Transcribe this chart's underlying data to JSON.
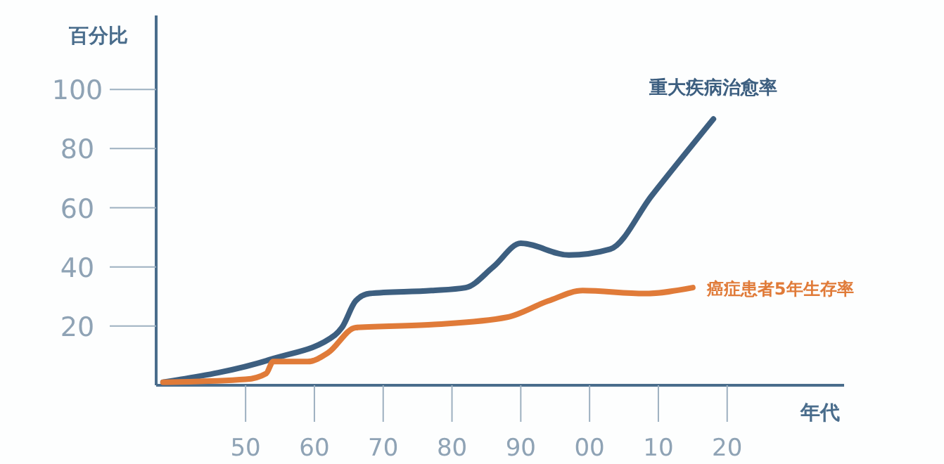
{
  "chart_data": {
    "type": "line",
    "xlabel": "年代",
    "ylabel": "百分比",
    "xlim": [
      1937,
      2037
    ],
    "ylim": [
      0,
      125
    ],
    "xticks": [
      {
        "value": 1950,
        "label": "50"
      },
      {
        "value": 1960,
        "label": "60"
      },
      {
        "value": 1970,
        "label": "70"
      },
      {
        "value": 1980,
        "label": "80"
      },
      {
        "value": 1990,
        "label": "90"
      },
      {
        "value": 2000,
        "label": "00"
      },
      {
        "value": 2010,
        "label": "10"
      },
      {
        "value": 2020,
        "label": "20"
      }
    ],
    "yticks": [
      20,
      40,
      60,
      80,
      100
    ],
    "grid": false,
    "marker": "none",
    "line_style": "solid",
    "series": [
      {
        "name": "重大疾病治愈率",
        "color": "#3d5f80",
        "x": [
          1938,
          1954,
          1963,
          1964,
          1966,
          1968,
          1977,
          1982,
          1986,
          1990,
          1997,
          2003,
          2009,
          2018
        ],
        "values": [
          1,
          9,
          17,
          19.5,
          28.5,
          31,
          32,
          33,
          40,
          48,
          44,
          46,
          64,
          90
        ]
      },
      {
        "name": "癌症患者5年生存率",
        "color": "#e07b39",
        "x": [
          1938,
          1950,
          1953,
          1954,
          1959,
          1962,
          1966,
          1977,
          1988,
          1994,
          1999,
          2008,
          2015
        ],
        "values": [
          1,
          2,
          4,
          8,
          8,
          11,
          19.5,
          20.5,
          23,
          28.5,
          32,
          31,
          33
        ]
      }
    ]
  }
}
